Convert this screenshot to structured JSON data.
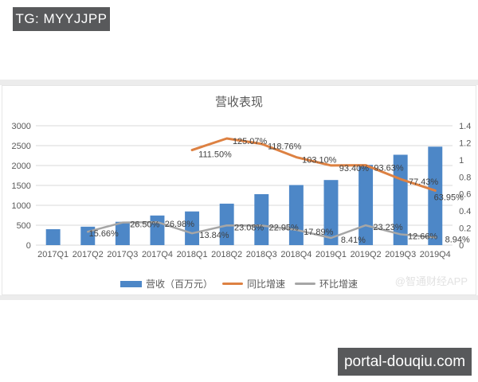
{
  "overlays": {
    "tg_badge": "TG: MYYJJPP",
    "site_badge": "portal-douqiu.com",
    "watermark": "@智通财经APP"
  },
  "colors": {
    "bar": "#4d87c7",
    "yoy_line": "#dd8142",
    "qoq_line": "#a6a6a6",
    "badge_bg": "#58595b",
    "axis_text": "#595959",
    "label_text": "#3f3f3f",
    "gridline": "#d9d9d9"
  },
  "chart_data": {
    "type": "bar",
    "subtype": "combo-bar-line",
    "title": "营收表现",
    "categories": [
      "2017Q1",
      "2017Q2",
      "2017Q3",
      "2017Q4",
      "2018Q1",
      "2018Q2",
      "2018Q3",
      "2018Q4",
      "2019Q1",
      "2019Q2",
      "2019Q3",
      "2019Q4"
    ],
    "series": [
      {
        "name": "营收（百万元）",
        "type": "bar",
        "axis": "left",
        "color": "#4d87c7",
        "values": [
          400,
          463,
          586,
          744,
          846,
          1042,
          1281,
          1510,
          1636,
          2016,
          2271,
          2474
        ]
      },
      {
        "name": "同比增速",
        "type": "line",
        "axis": "right",
        "color": "#dd8142",
        "values": [
          null,
          null,
          null,
          null,
          1.115,
          1.2507,
          1.1876,
          1.031,
          0.934,
          0.9363,
          0.7743,
          0.6395
        ],
        "labels": [
          null,
          null,
          null,
          null,
          "111.50%",
          "125.07%",
          "118.76%",
          "103.10%",
          "93.40%",
          "93.63%",
          "77.43%",
          "63.95%"
        ]
      },
      {
        "name": "环比增速",
        "type": "line",
        "axis": "right",
        "color": "#a6a6a6",
        "values": [
          null,
          0.1566,
          0.265,
          0.2698,
          0.1384,
          0.2308,
          0.2295,
          0.1789,
          0.0841,
          0.2323,
          0.1266,
          0.0894
        ],
        "labels": [
          null,
          "15.66%",
          "26.50%",
          "26.98%",
          "13.84%",
          "23.08%",
          "22.95%",
          "17.89%",
          "8.41%",
          "23.23%",
          "12.66%",
          "8.94%"
        ]
      }
    ],
    "left_axis": {
      "min": 0,
      "max": 3000,
      "step": 500,
      "ticks": [
        "0",
        "500",
        "1000",
        "1500",
        "2000",
        "2500",
        "3000"
      ]
    },
    "right_axis": {
      "min": 0,
      "max": 1.4,
      "step": 0.2,
      "ticks": [
        "0",
        "0.2",
        "0.4",
        "0.6",
        "0.8",
        "1",
        "1.2",
        "1.4"
      ]
    },
    "legend_position": "bottom",
    "grid": true
  }
}
